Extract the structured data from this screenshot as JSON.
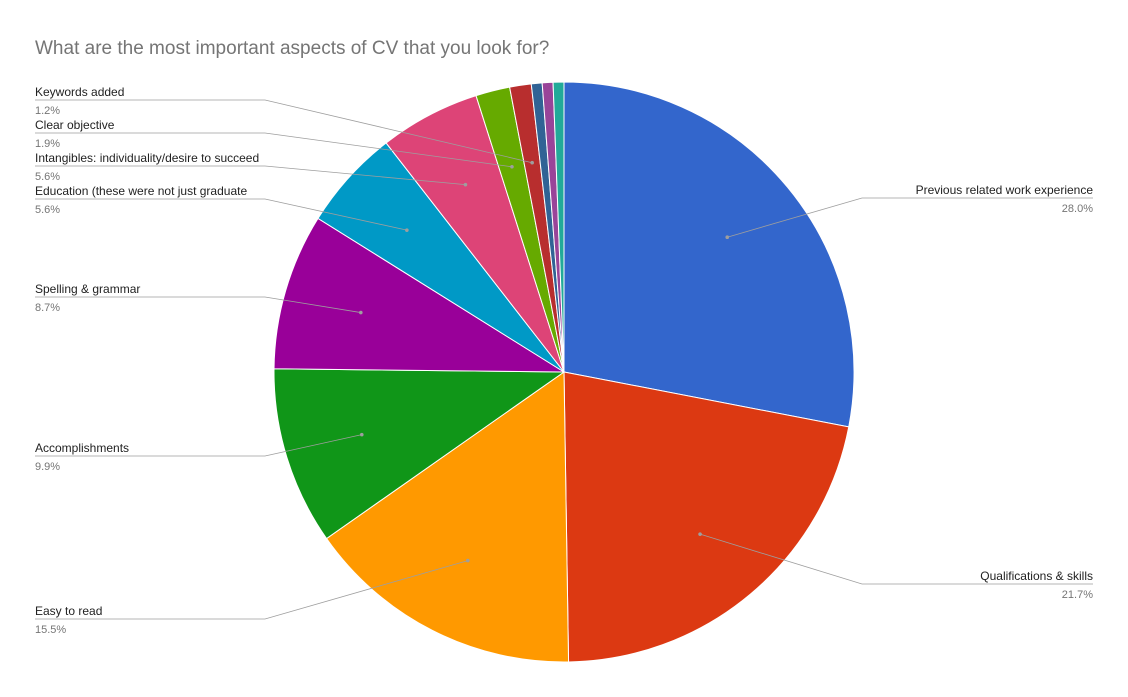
{
  "chart_data": {
    "type": "pie",
    "title": "What are the most important aspects of CV that you look for?",
    "slices": [
      {
        "label": "Previous related work experience",
        "value": 28.0,
        "display": "28.0%",
        "color": "#3366cc"
      },
      {
        "label": "Qualifications & skills",
        "value": 21.7,
        "display": "21.7%",
        "color": "#dc3912"
      },
      {
        "label": "Easy to read",
        "value": 15.5,
        "display": "15.5%",
        "color": "#ff9900"
      },
      {
        "label": "Accomplishments",
        "value": 9.9,
        "display": "9.9%",
        "color": "#109618"
      },
      {
        "label": "Spelling & grammar",
        "value": 8.7,
        "display": "8.7%",
        "color": "#990099"
      },
      {
        "label": "Education (these were not just graduate",
        "value": 5.6,
        "display": "5.6%",
        "color": "#0099c6"
      },
      {
        "label": "Intangibles: individuality/desire to succeed",
        "value": 5.6,
        "display": "5.6%",
        "color": "#dd4477"
      },
      {
        "label": "Clear objective",
        "value": 1.9,
        "display": "1.9%",
        "color": "#66aa00"
      },
      {
        "label": "Keywords added",
        "value": 1.2,
        "display": "1.2%",
        "color": "#b82e2e"
      },
      {
        "label": "",
        "value": 0.6,
        "display": "",
        "color": "#316395"
      },
      {
        "label": "",
        "value": 0.6,
        "display": "",
        "color": "#994499"
      },
      {
        "label": "",
        "value": 0.6,
        "display": "",
        "color": "#22aa99"
      }
    ]
  }
}
